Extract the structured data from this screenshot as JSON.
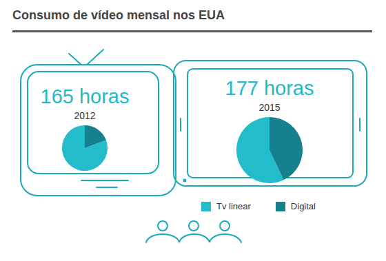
{
  "title": "Consumo de vídeo mensal nos EUA",
  "chart_data": [
    {
      "type": "pie",
      "title": "165 horas",
      "subtitle": "2012",
      "categories": [
        "Tv linear",
        "Digital"
      ],
      "values": [
        133,
        32
      ],
      "colors": [
        "#22bccb",
        "#16808f"
      ]
    },
    {
      "type": "pie",
      "title": "177 horas",
      "subtitle": "2015",
      "categories": [
        "Tv linear",
        "Digital"
      ],
      "values": [
        101,
        76
      ],
      "colors": [
        "#22bccb",
        "#16808f"
      ]
    }
  ]
}
